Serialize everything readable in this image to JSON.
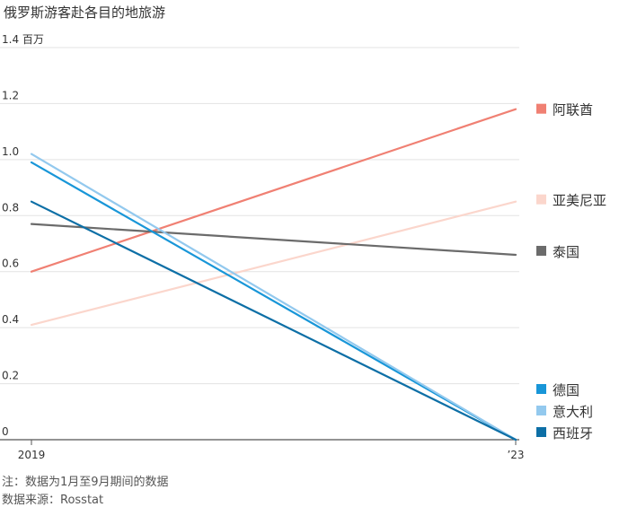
{
  "title": "俄罗斯游客赴各目的地旅游",
  "note": "注：数据为1月至9月期间的数据",
  "source": "数据来源：Rosstat",
  "chart_data": {
    "type": "line",
    "x": [
      "2019",
      "’23"
    ],
    "ylim": [
      0,
      1.4
    ],
    "yticks": [
      {
        "value": 0,
        "label": "0"
      },
      {
        "value": 0.2,
        "label": "0.2"
      },
      {
        "value": 0.4,
        "label": "0.4"
      },
      {
        "value": 0.6,
        "label": "0.6"
      },
      {
        "value": 0.8,
        "label": "0.8"
      },
      {
        "value": 1.0,
        "label": "1.0"
      },
      {
        "value": 1.2,
        "label": "1.2"
      },
      {
        "value": 1.4,
        "label": "1.4 百万"
      }
    ],
    "grid": true,
    "legend_placement": "right",
    "series": [
      {
        "name": "阿联酋",
        "values": [
          0.6,
          1.18
        ],
        "color": "#f08073",
        "legend": true
      },
      {
        "name": "亚美尼亚",
        "values": [
          0.41,
          0.85
        ],
        "color": "#fbd6cc",
        "legend": true
      },
      {
        "name": "泰国",
        "values": [
          0.77,
          0.66
        ],
        "color": "#6b6b6b",
        "legend": true
      },
      {
        "name": "德国",
        "values": [
          0.99,
          0.0
        ],
        "color": "#1896d8",
        "legend": true
      },
      {
        "name": "意大利",
        "values": [
          1.02,
          0.0
        ],
        "color": "#93c9ee",
        "legend": true
      },
      {
        "name": "西班牙",
        "values": [
          0.85,
          0.0
        ],
        "color": "#0d6fa6",
        "legend": true
      }
    ]
  }
}
